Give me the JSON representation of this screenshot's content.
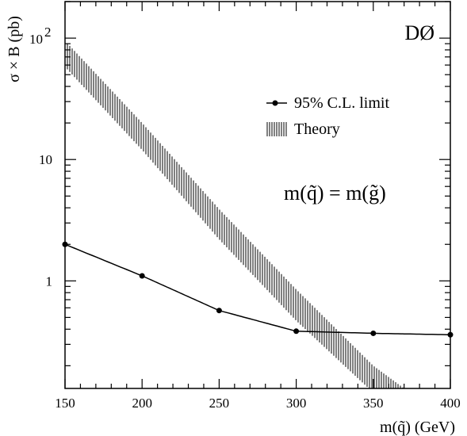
{
  "chart_data": {
    "type": "line",
    "experiment_label": "DØ",
    "xlabel": "m(q̃) (GeV)",
    "ylabel": "σ × B (pb)",
    "xlim": [
      150,
      400
    ],
    "ylim": [
      0.13,
      200
    ],
    "yscale": "log",
    "x_ticks": [
      {
        "value": 150,
        "label": "150"
      },
      {
        "value": 200,
        "label": "200"
      },
      {
        "value": 250,
        "label": "250"
      },
      {
        "value": 300,
        "label": "300"
      },
      {
        "value": 350,
        "label": "350"
      },
      {
        "value": 400,
        "label": "400"
      }
    ],
    "y_ticks": [
      {
        "value": 1,
        "label": "1"
      },
      {
        "value": 10,
        "label": "10"
      },
      {
        "value": 100,
        "label": "10",
        "exponent": "2"
      }
    ],
    "annotation": "m(q̃) = m(g̃)",
    "legend_position": "top-right",
    "series": [
      {
        "name": "95% C.L. limit",
        "style": "line-with-markers",
        "color": "#000000",
        "x": [
          150,
          200,
          250,
          300,
          350,
          400
        ],
        "values": [
          2.0,
          1.1,
          0.57,
          0.385,
          0.37,
          0.36
        ]
      },
      {
        "name": "Theory",
        "style": "hatched-band",
        "color": "#000000",
        "x": [
          150,
          200,
          250,
          300,
          350,
          370
        ],
        "lower": [
          58,
          12,
          2.2,
          0.47,
          0.12,
          0.13
        ],
        "upper": [
          95,
          20,
          3.9,
          0.85,
          0.2,
          0.13
        ]
      }
    ]
  }
}
